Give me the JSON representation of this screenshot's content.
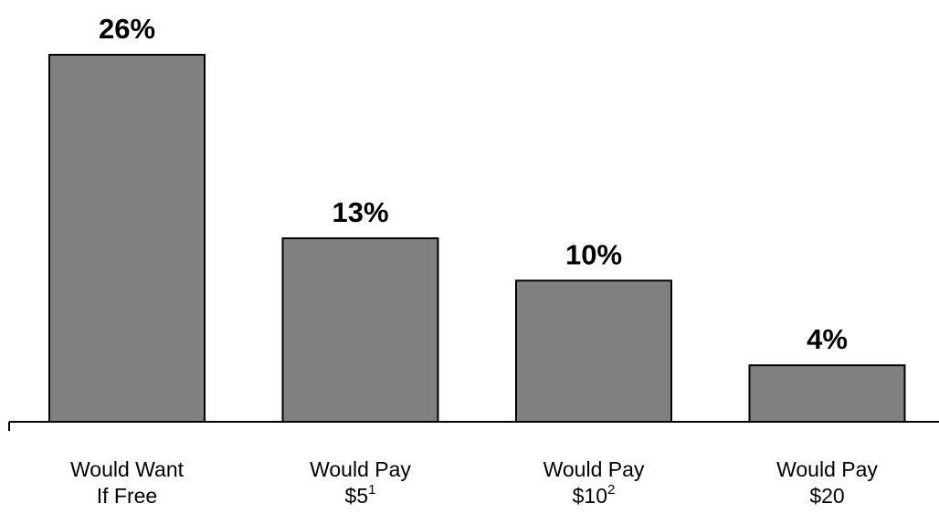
{
  "chart_data": {
    "type": "bar",
    "categories": [
      {
        "line1": "Would Want",
        "line2": "If Free",
        "sup": ""
      },
      {
        "line1": "Would Pay",
        "line2": "$5",
        "sup": "1"
      },
      {
        "line1": "Would Pay",
        "line2": "$10",
        "sup": "2"
      },
      {
        "line1": "Would Pay",
        "line2": "$20",
        "sup": ""
      }
    ],
    "values": [
      26,
      13,
      10,
      4
    ],
    "data_labels": [
      "26%",
      "13%",
      "10%",
      "4%"
    ],
    "title": "",
    "xlabel": "",
    "ylabel": "",
    "ylim": [
      0,
      26
    ],
    "grid": false,
    "legend": "none",
    "colors": {
      "bar_fill": "#808080",
      "bar_stroke": "#000000",
      "text": "#000000"
    }
  }
}
